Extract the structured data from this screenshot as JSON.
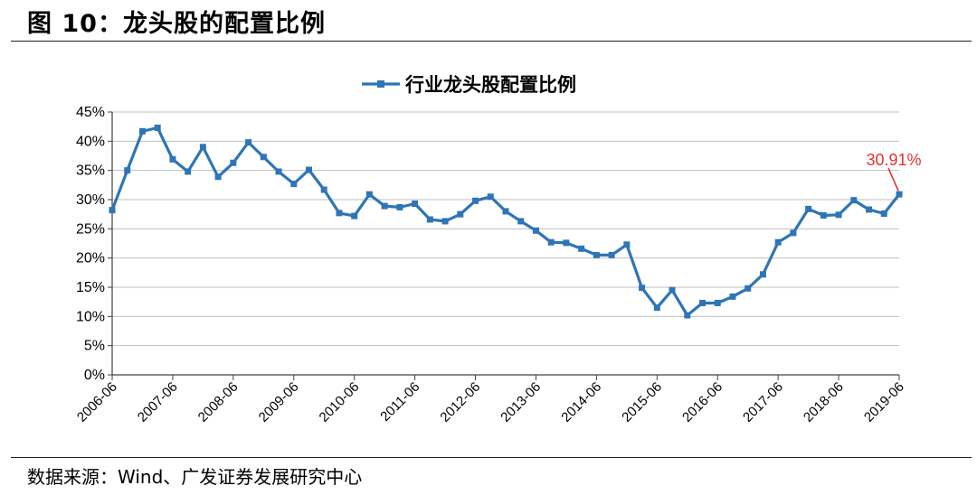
{
  "figure": {
    "title": "图 10：龙头股的配置比例",
    "source": "数据来源：Wind、广发证券发展研究中心"
  },
  "colors": {
    "series": "#2E75B6",
    "annotation": "#E8312F",
    "grid": "#BFBFBF",
    "axis": "#404040"
  },
  "chart_data": {
    "type": "line",
    "title": "",
    "legend_position": "top-center",
    "grid": "horizontal",
    "xlabel": "",
    "ylabel": "",
    "ylim": [
      0,
      45
    ],
    "y_ticks": [
      "0%",
      "5%",
      "10%",
      "15%",
      "20%",
      "25%",
      "30%",
      "35%",
      "40%",
      "45%"
    ],
    "x_ticks": [
      "2006-06",
      "2007-06",
      "2008-06",
      "2009-06",
      "2010-06",
      "2011-06",
      "2012-06",
      "2013-06",
      "2014-06",
      "2015-06",
      "2016-06",
      "2017-06",
      "2018-06",
      "2019-06"
    ],
    "series": [
      {
        "name": "行业龙头股配置比例",
        "values": [
          28.2,
          35.0,
          41.7,
          42.3,
          36.9,
          34.8,
          39.0,
          33.9,
          36.3,
          39.8,
          37.3,
          34.8,
          32.7,
          35.1,
          31.7,
          27.7,
          27.2,
          30.9,
          28.9,
          28.7,
          29.3,
          26.6,
          26.3,
          27.5,
          29.8,
          30.5,
          28.0,
          26.3,
          24.7,
          22.7,
          22.6,
          21.6,
          20.5,
          20.5,
          22.3,
          14.9,
          11.5,
          14.5,
          10.2,
          12.3,
          12.3,
          13.4,
          14.8,
          17.2,
          22.7,
          24.3,
          28.4,
          27.3,
          27.4,
          29.9,
          28.3,
          27.6,
          30.91
        ]
      }
    ],
    "annotations": [
      {
        "text": "30.91%",
        "value": 30.91
      }
    ]
  }
}
